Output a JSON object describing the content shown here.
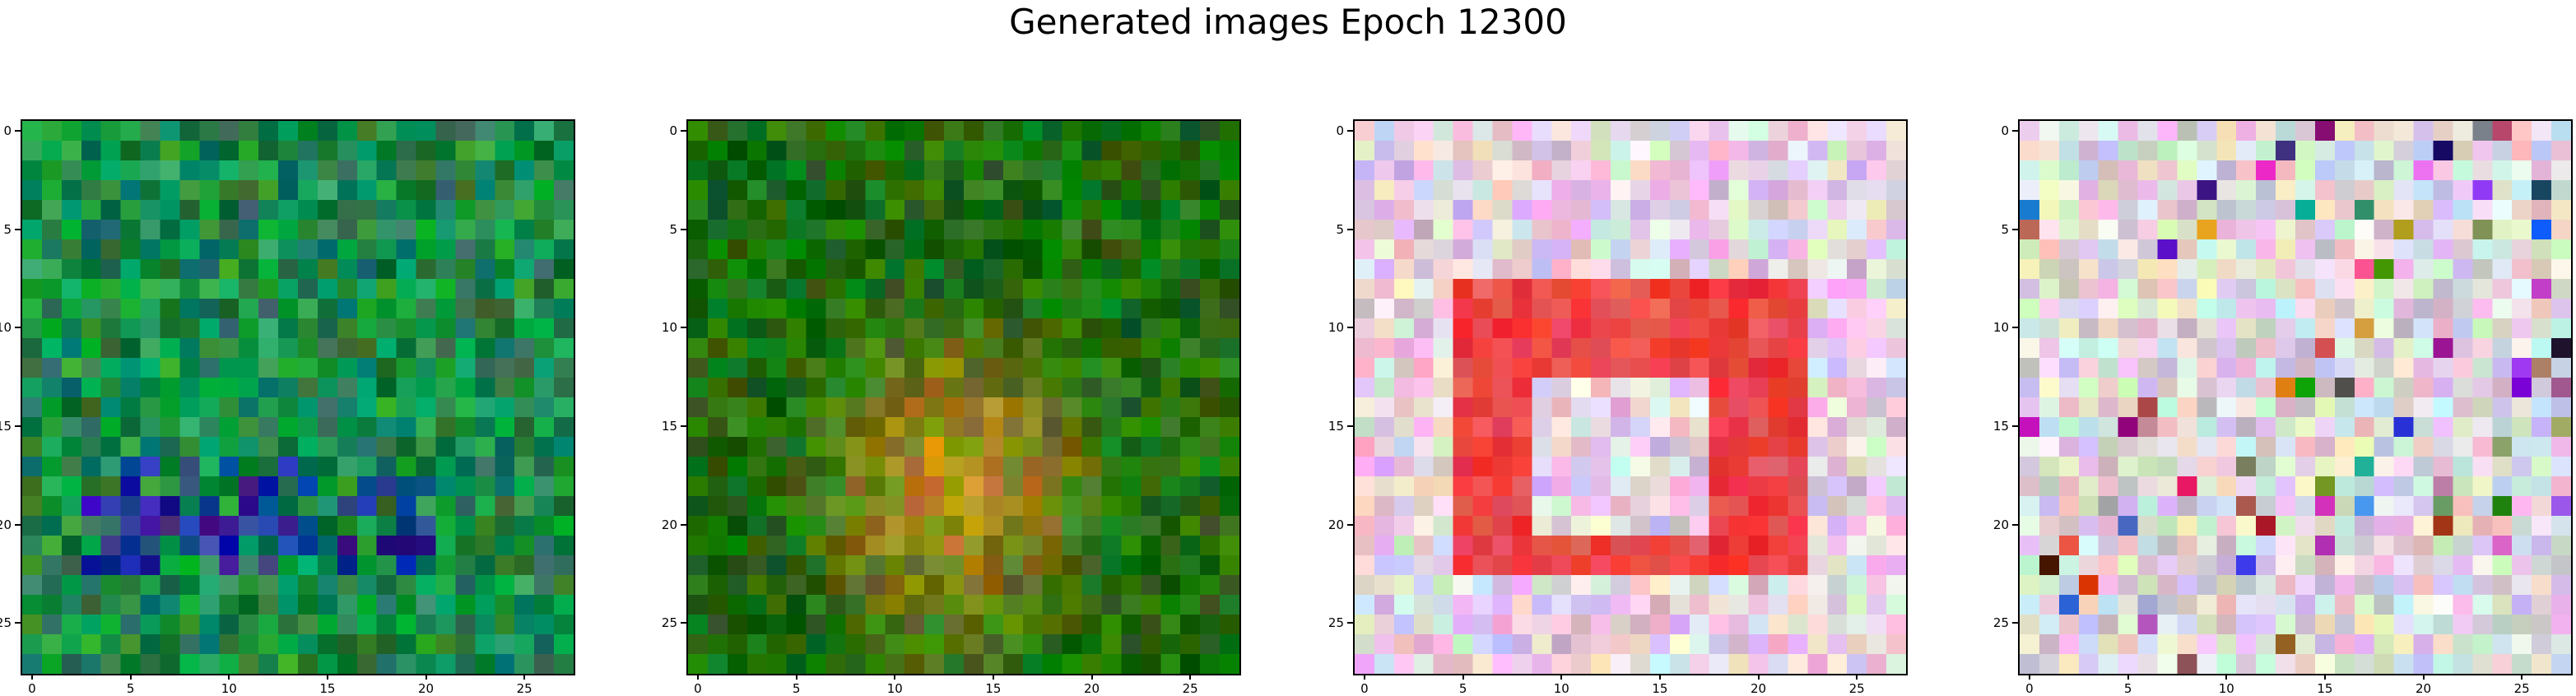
{
  "figure": {
    "title": "Generated images Epoch 12300"
  },
  "chart_data": [
    {
      "type": "heatmap",
      "grid": [
        28,
        28
      ],
      "xticks": [
        "0",
        "5",
        "10",
        "15",
        "20",
        "25"
      ],
      "yticks": [
        "0",
        "5",
        "10",
        "15",
        "20",
        "25"
      ],
      "base_color": "#1a8a4a",
      "secondary_color": "#1e2ea0"
    },
    {
      "type": "heatmap",
      "grid": [
        28,
        28
      ],
      "xticks": [
        "0",
        "5",
        "10",
        "15",
        "20",
        "25"
      ],
      "yticks": [
        "0",
        "5",
        "10",
        "15",
        "20",
        "25"
      ],
      "base_color": "#1f6e0c",
      "secondary_color": "#c8861e"
    },
    {
      "type": "heatmap",
      "grid": [
        28,
        28
      ],
      "xticks": [
        "0",
        "5",
        "10",
        "15",
        "20",
        "25"
      ],
      "yticks": [
        "0",
        "5",
        "10",
        "15",
        "20",
        "25"
      ],
      "base_color": "#d8cbdc",
      "secondary_color": "#ee2a2a"
    },
    {
      "type": "heatmap",
      "grid": [
        28,
        28
      ],
      "xticks": [
        "0",
        "5",
        "10",
        "15",
        "20",
        "25"
      ],
      "yticks": [
        "0",
        "5",
        "10",
        "15",
        "20",
        "25"
      ],
      "base_color": "#e3d0e0",
      "secondary_color": "#cfe0c8"
    }
  ]
}
